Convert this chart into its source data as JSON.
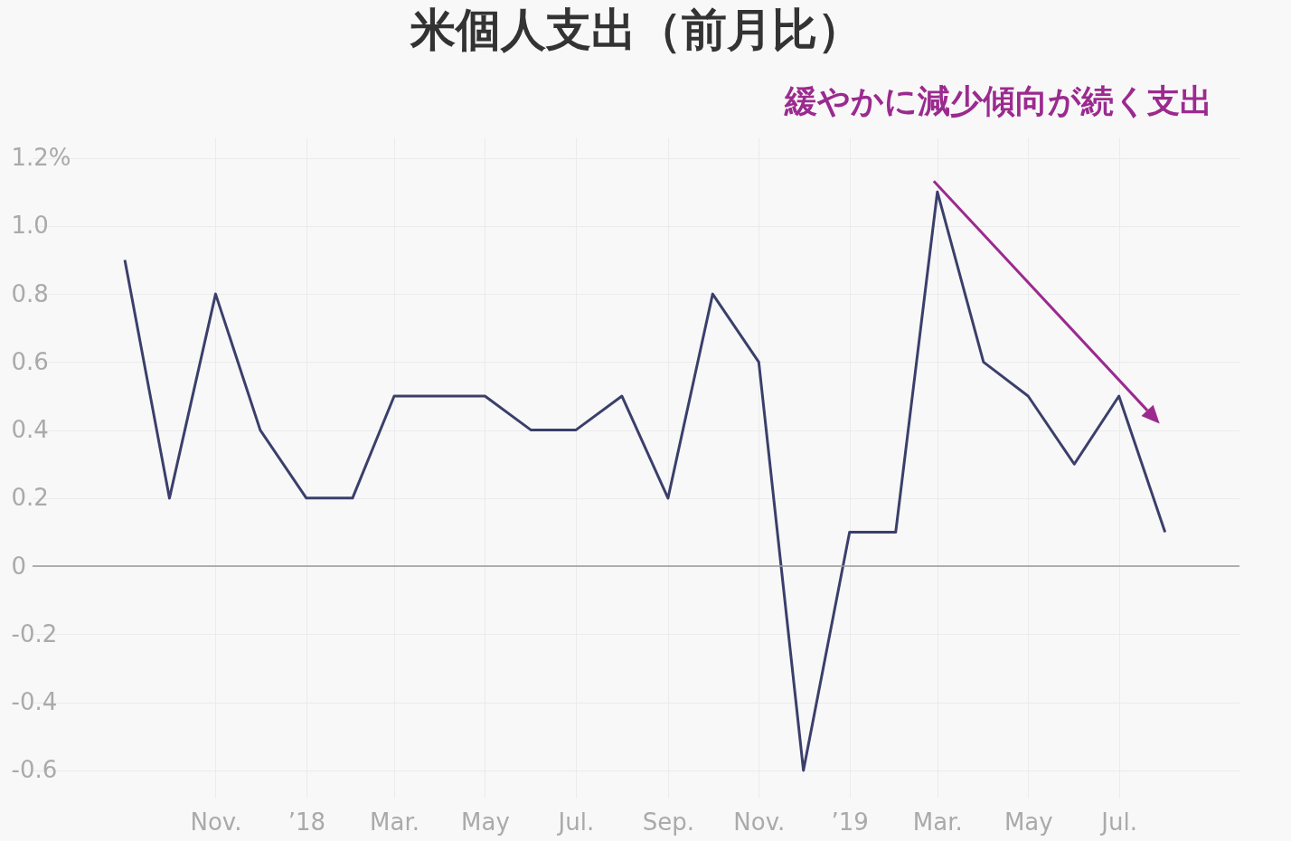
{
  "chart_data": {
    "type": "line",
    "title": "米個人支出（前月比）",
    "annotations": [
      "緩やかに減少傾向が続く支出"
    ],
    "x": [
      "2017-09",
      "2017-10",
      "2017-11",
      "2017-12",
      "2018-01",
      "2018-02",
      "2018-03",
      "2018-04",
      "2018-05",
      "2018-06",
      "2018-07",
      "2018-08",
      "2018-09",
      "2018-10",
      "2018-11",
      "2018-12",
      "2019-01",
      "2019-02",
      "2019-03",
      "2019-04",
      "2019-05",
      "2019-06",
      "2019-07",
      "2019-08"
    ],
    "series": [
      {
        "color": "#3b3f6b",
        "values": [
          0.9,
          0.2,
          0.8,
          0.4,
          0.2,
          0.2,
          0.5,
          0.5,
          0.5,
          0.4,
          0.4,
          0.5,
          0.2,
          0.8,
          0.6,
          -0.6,
          0.1,
          0.1,
          1.1,
          0.6,
          0.5,
          0.3,
          0.5,
          0.1
        ]
      }
    ],
    "xlim": [
      "2017-07",
      "2019-09-20"
    ],
    "xticks": [
      {
        "value": "2017-11",
        "label": "Nov."
      },
      {
        "value": "2018-01",
        "label": "’18"
      },
      {
        "value": "2018-03",
        "label": "Mar."
      },
      {
        "value": "2018-05",
        "label": "May"
      },
      {
        "value": "2018-07",
        "label": "Jul."
      },
      {
        "value": "2018-09",
        "label": "Sep."
      },
      {
        "value": "2018-11",
        "label": "Nov."
      },
      {
        "value": "2019-01",
        "label": "’19"
      },
      {
        "value": "2019-03",
        "label": "Mar."
      },
      {
        "value": "2019-05",
        "label": "May"
      },
      {
        "value": "2019-07",
        "label": "Jul."
      }
    ],
    "ylim": [
      -0.68,
      1.26
    ],
    "yticks": [
      -0.6,
      -0.4,
      -0.2,
      0,
      0.2,
      0.4,
      0.6,
      0.8,
      {
        "value": 1.0,
        "label": "1.0"
      },
      {
        "value": 1.2,
        "label": "1.2%"
      }
    ],
    "ref_lines": [
      {
        "axis": "y",
        "value": 0,
        "color": "#999999"
      }
    ],
    "grid": true,
    "legend": false,
    "marker": "none",
    "line_style": "solid"
  }
}
